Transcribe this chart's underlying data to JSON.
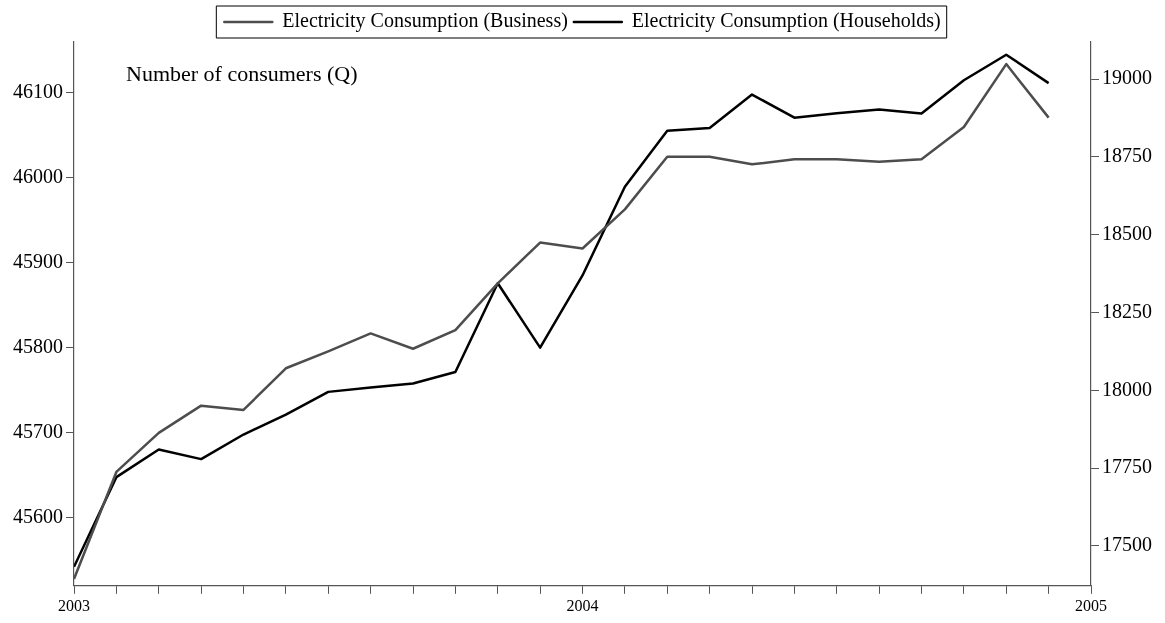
{
  "chart_data": {
    "type": "line",
    "title": "Number of consumers (Q)",
    "x": [
      "2003-01",
      "2003-02",
      "2003-03",
      "2003-04",
      "2003-05",
      "2003-06",
      "2003-07",
      "2003-08",
      "2003-09",
      "2003-10",
      "2003-11",
      "2003-12",
      "2004-01",
      "2004-02",
      "2004-03",
      "2004-04",
      "2004-05",
      "2004-06",
      "2004-07",
      "2004-08",
      "2004-09",
      "2004-10",
      "2004-11",
      "2004-12"
    ],
    "series": [
      {
        "name": "Electricity Consumption (Business)",
        "color": "#4d4d4d",
        "values": [
          45528,
          45654,
          45700,
          45732,
          45727,
          45776,
          45796,
          45817,
          45799,
          45821,
          45876,
          45924,
          45917,
          45963,
          46025,
          46025,
          46016,
          46022,
          46022,
          46019,
          46022,
          46060,
          46134,
          46071
        ]
      },
      {
        "name": "Electricity Consumption (Households)",
        "color": "#000000",
        "axis": "y2",
        "values": [
          17433,
          17721,
          17810,
          17779,
          17858,
          17922,
          17995,
          18009,
          18022,
          18059,
          18344,
          18137,
          18369,
          18654,
          18834,
          18843,
          18950,
          18876,
          18890,
          18902,
          18889,
          18996,
          19078,
          18987
        ]
      }
    ],
    "xlim": [
      "2003",
      "2005"
    ],
    "xticks": [
      "2003",
      {
        "value": "2003-02",
        "label": null
      },
      {
        "value": "2003-03",
        "label": null
      },
      {
        "value": "2003-04",
        "label": null
      },
      {
        "value": "2003-05",
        "label": null
      },
      {
        "value": "2003-06",
        "label": null
      },
      {
        "value": "2003-07",
        "label": null
      },
      {
        "value": "2003-08",
        "label": null
      },
      {
        "value": "2003-09",
        "label": null
      },
      {
        "value": "2003-10",
        "label": null
      },
      {
        "value": "2003-11",
        "label": null
      },
      {
        "value": "2003-12",
        "label": null
      },
      "2004",
      {
        "value": "2004-02",
        "label": null
      },
      {
        "value": "2004-03",
        "label": null
      },
      {
        "value": "2004-04",
        "label": null
      },
      {
        "value": "2004-05",
        "label": null
      },
      {
        "value": "2004-06",
        "label": null
      },
      {
        "value": "2004-07",
        "label": null
      },
      {
        "value": "2004-08",
        "label": null
      },
      {
        "value": "2004-09",
        "label": null
      },
      {
        "value": "2004-10",
        "label": null
      },
      {
        "value": "2004-11",
        "label": null
      },
      {
        "value": "2004-12",
        "label": null
      },
      "2005"
    ],
    "ylim": [
      45520,
      46160
    ],
    "yticks": [
      45600,
      45700,
      45800,
      45900,
      46000,
      46100
    ],
    "y2lim": [
      17372,
      19119
    ],
    "y2ticks": [
      17500,
      17750,
      18000,
      18250,
      18500,
      18750,
      19000
    ],
    "grid": false,
    "legend": "top",
    "marker": "none",
    "line_style": "solid"
  }
}
